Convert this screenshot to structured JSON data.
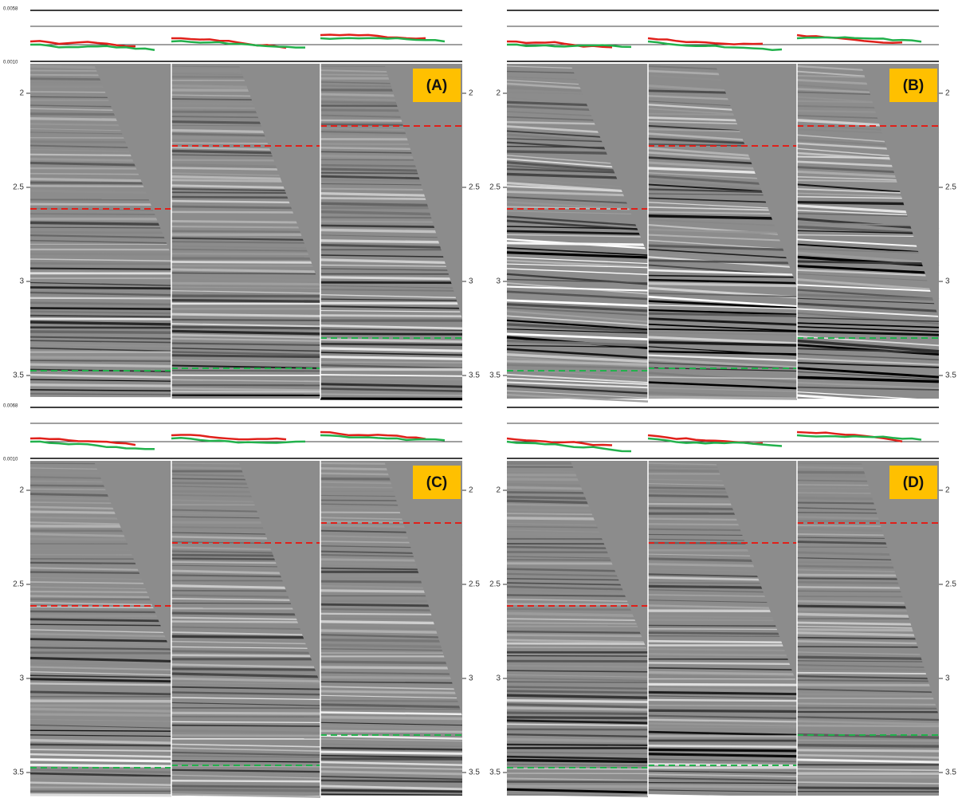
{
  "panels": [
    {
      "label": "(A)",
      "scale_top": "0.0058",
      "scale_bottom": "0.0010",
      "ticks": [
        "2",
        "2.5",
        "3",
        "3.5"
      ]
    },
    {
      "label": "(B)",
      "ticks": [
        "2",
        "2.5",
        "3",
        "3.5"
      ]
    },
    {
      "label": "(C)",
      "scale_top": "0.0068",
      "scale_bottom": "0.0010",
      "ticks": [
        "2",
        "2.5",
        "3",
        "3.5"
      ]
    },
    {
      "label": "(D)",
      "ticks": [
        "2",
        "2.5",
        "3",
        "3.5"
      ]
    }
  ]
}
